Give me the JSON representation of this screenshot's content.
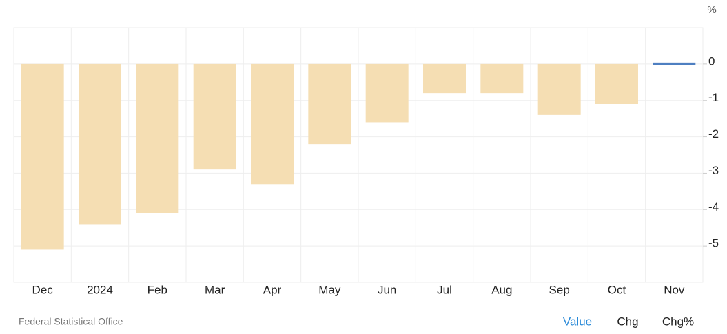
{
  "chart_data": {
    "type": "bar",
    "y_unit": "%",
    "categories": [
      "Dec",
      "2024",
      "Feb",
      "Mar",
      "Apr",
      "May",
      "Jun",
      "Jul",
      "Aug",
      "Sep",
      "Oct",
      "Nov"
    ],
    "values": [
      -5.1,
      -4.4,
      -4.1,
      -2.9,
      -3.3,
      -2.2,
      -1.6,
      -0.8,
      -0.8,
      -1.4,
      -1.1,
      0
    ],
    "colors": [
      "#f5deb3",
      "#f5deb3",
      "#f5deb3",
      "#f5deb3",
      "#f5deb3",
      "#f5deb3",
      "#f5deb3",
      "#f5deb3",
      "#f5deb3",
      "#f5deb3",
      "#f5deb3",
      "#4e7fc1"
    ],
    "ylim": [
      -6,
      1
    ],
    "yticks": [
      0,
      -1,
      -2,
      -3,
      -4,
      -5
    ],
    "grid": true,
    "source": "Federal Statistical Office",
    "buttons": [
      "Value",
      "Chg",
      "Chg%"
    ]
  }
}
